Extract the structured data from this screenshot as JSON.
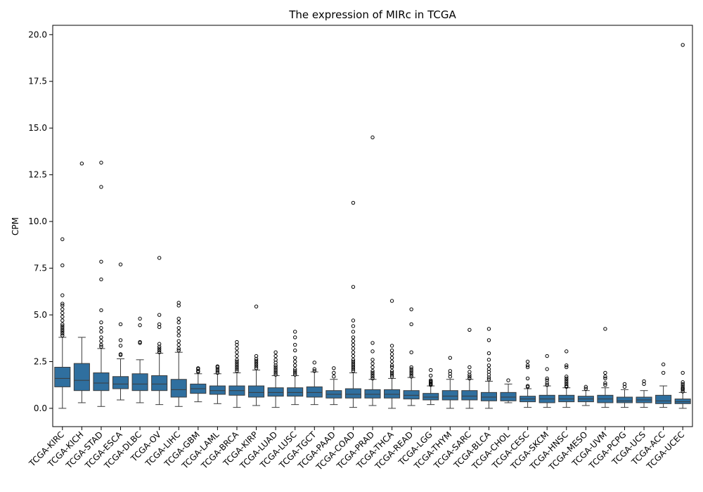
{
  "chart_data": {
    "type": "box",
    "title": "The expression of MIRc in TCGA",
    "xlabel": "",
    "ylabel": "CPM",
    "ylim": [
      -0.98,
      20.5
    ],
    "yticks": [
      0.0,
      2.5,
      5.0,
      7.5,
      10.0,
      12.5,
      15.0,
      17.5,
      20.0
    ],
    "ytick_labels": [
      "0.0",
      "2.5",
      "5.0",
      "7.5",
      "10.0",
      "12.5",
      "15.0",
      "17.5",
      "20.0"
    ],
    "grid": false,
    "legend": "none",
    "box_color": "#2f6f9f",
    "categories": [
      "TCGA-KIRC",
      "TCGA-KICH",
      "TCGA-STAD",
      "TCGA-ESCA",
      "TCGA-DLBC",
      "TCGA-OV",
      "TCGA-LIHC",
      "TCGA-GBM",
      "TCGA-LAML",
      "TCGA-BRCA",
      "TCGA-KIRP",
      "TCGA-LUAD",
      "TCGA-LUSC",
      "TCGA-TGCT",
      "TCGA-PAAD",
      "TCGA-COAD",
      "TCGA-PRAD",
      "TCGA-THCA",
      "TCGA-READ",
      "TCGA-LGG",
      "TCGA-THYM",
      "TCGA-SARC",
      "TCGA-BLCA",
      "TCGA-CHOL",
      "TCGA-CESC",
      "TCGA-SKCM",
      "TCGA-HNSC",
      "TCGA-MESO",
      "TCGA-UVM",
      "TCGA-PCPG",
      "TCGA-UCS",
      "TCGA-ACC",
      "TCGA-UCEC"
    ],
    "boxes": [
      {
        "whislo": 0.0,
        "q1": 1.15,
        "med": 1.6,
        "q3": 2.2,
        "whishi": 3.8,
        "fliers": [
          3.9,
          4.0,
          4.1,
          4.2,
          4.3,
          4.4,
          4.5,
          4.7,
          4.9,
          5.1,
          5.3,
          5.5,
          5.6,
          6.05,
          7.65,
          9.05
        ]
      },
      {
        "whislo": 0.3,
        "q1": 0.95,
        "med": 1.5,
        "q3": 2.4,
        "whishi": 3.8,
        "fliers": [
          13.1
        ]
      },
      {
        "whislo": 0.1,
        "q1": 0.95,
        "med": 1.35,
        "q3": 1.9,
        "whishi": 3.2,
        "fliers": [
          3.3,
          3.4,
          3.6,
          3.8,
          4.1,
          4.3,
          4.6,
          5.25,
          6.9,
          7.85,
          11.85,
          13.15
        ]
      },
      {
        "whislo": 0.45,
        "q1": 1.05,
        "med": 1.3,
        "q3": 1.7,
        "whishi": 2.65,
        "fliers": [
          2.85,
          2.9,
          3.35,
          3.65,
          4.5,
          7.7
        ]
      },
      {
        "whislo": 0.3,
        "q1": 0.95,
        "med": 1.3,
        "q3": 1.85,
        "whishi": 2.6,
        "fliers": [
          3.5,
          3.55,
          4.45,
          4.8
        ]
      },
      {
        "whislo": 0.2,
        "q1": 0.95,
        "med": 1.3,
        "q3": 1.75,
        "whishi": 2.95,
        "fliers": [
          3.0,
          3.1,
          3.2,
          3.3,
          3.45,
          4.35,
          4.5,
          5.0,
          8.05
        ]
      },
      {
        "whislo": 0.1,
        "q1": 0.6,
        "med": 1.0,
        "q3": 1.55,
        "whishi": 3.0,
        "fliers": [
          3.1,
          3.2,
          3.4,
          3.6,
          3.9,
          4.1,
          4.3,
          4.6,
          4.8,
          5.5,
          5.65
        ]
      },
      {
        "whislo": 0.35,
        "q1": 0.8,
        "med": 1.05,
        "q3": 1.3,
        "whishi": 1.85,
        "fliers": [
          1.95,
          2.0,
          2.1,
          2.15
        ]
      },
      {
        "whislo": 0.25,
        "q1": 0.75,
        "med": 0.95,
        "q3": 1.2,
        "whishi": 1.85,
        "fliers": [
          1.9,
          2.0,
          2.1,
          2.2,
          2.25
        ]
      },
      {
        "whislo": 0.05,
        "q1": 0.7,
        "med": 0.95,
        "q3": 1.2,
        "whishi": 1.9,
        "fliers": [
          2.0,
          2.1,
          2.2,
          2.3,
          2.4,
          2.5,
          2.6,
          2.8,
          3.0,
          3.2,
          3.4,
          3.55
        ]
      },
      {
        "whislo": 0.15,
        "q1": 0.6,
        "med": 0.85,
        "q3": 1.2,
        "whishi": 2.05,
        "fliers": [
          2.15,
          2.25,
          2.35,
          2.45,
          2.55,
          2.65,
          2.8,
          5.45
        ]
      },
      {
        "whislo": 0.05,
        "q1": 0.65,
        "med": 0.85,
        "q3": 1.1,
        "whishi": 1.75,
        "fliers": [
          1.8,
          1.9,
          2.0,
          2.1,
          2.2,
          2.3,
          2.45,
          2.6,
          2.8,
          3.0
        ]
      },
      {
        "whislo": 0.2,
        "q1": 0.65,
        "med": 0.85,
        "q3": 1.1,
        "whishi": 1.75,
        "fliers": [
          1.8,
          1.9,
          2.0,
          2.1,
          2.3,
          2.5,
          2.7,
          3.1,
          3.4,
          3.8,
          4.1
        ]
      },
      {
        "whislo": 0.2,
        "q1": 0.6,
        "med": 0.85,
        "q3": 1.15,
        "whishi": 1.95,
        "fliers": [
          2.0,
          2.1,
          2.45
        ]
      },
      {
        "whislo": 0.2,
        "q1": 0.55,
        "med": 0.75,
        "q3": 0.95,
        "whishi": 1.55,
        "fliers": [
          1.7,
          1.9,
          2.15
        ]
      },
      {
        "whislo": 0.05,
        "q1": 0.55,
        "med": 0.75,
        "q3": 1.05,
        "whishi": 1.9,
        "fliers": [
          2.0,
          2.1,
          2.2,
          2.3,
          2.4,
          2.5,
          2.6,
          2.8,
          3.0,
          3.2,
          3.4,
          3.6,
          3.8,
          4.1,
          4.4,
          4.7,
          6.5,
          11.0
        ]
      },
      {
        "whislo": 0.15,
        "q1": 0.55,
        "med": 0.75,
        "q3": 1.0,
        "whishi": 1.55,
        "fliers": [
          1.6,
          1.7,
          1.8,
          1.9,
          2.0,
          2.2,
          2.4,
          2.6,
          3.05,
          3.5,
          14.5
        ]
      },
      {
        "whislo": 0.0,
        "q1": 0.55,
        "med": 0.75,
        "q3": 1.0,
        "whishi": 1.6,
        "fliers": [
          1.7,
          1.8,
          1.9,
          2.0,
          2.2,
          2.3,
          2.5,
          2.7,
          2.9,
          3.1,
          3.35,
          5.75
        ]
      },
      {
        "whislo": 0.15,
        "q1": 0.5,
        "med": 0.7,
        "q3": 0.95,
        "whishi": 1.65,
        "fliers": [
          1.7,
          1.8,
          1.9,
          2.0,
          2.1,
          2.2,
          3.0,
          4.5,
          5.3
        ]
      },
      {
        "whislo": 0.2,
        "q1": 0.45,
        "med": 0.6,
        "q3": 0.8,
        "whishi": 1.2,
        "fliers": [
          1.25,
          1.3,
          1.35,
          1.4,
          1.45,
          1.5,
          1.75,
          2.05
        ]
      },
      {
        "whislo": 0.0,
        "q1": 0.45,
        "med": 0.65,
        "q3": 0.95,
        "whishi": 1.55,
        "fliers": [
          1.7,
          1.85,
          2.0,
          2.7
        ]
      },
      {
        "whislo": 0.0,
        "q1": 0.45,
        "med": 0.65,
        "q3": 0.95,
        "whishi": 1.55,
        "fliers": [
          1.6,
          1.7,
          1.8,
          1.95,
          2.2,
          4.2
        ]
      },
      {
        "whislo": 0.0,
        "q1": 0.4,
        "med": 0.6,
        "q3": 0.85,
        "whishi": 1.45,
        "fliers": [
          1.55,
          1.65,
          1.8,
          1.95,
          2.1,
          2.3,
          2.6,
          2.95,
          3.65,
          4.25
        ]
      },
      {
        "whislo": 0.3,
        "q1": 0.4,
        "med": 0.6,
        "q3": 0.85,
        "whishi": 1.3,
        "fliers": [
          1.5
        ]
      },
      {
        "whislo": 0.05,
        "q1": 0.35,
        "med": 0.5,
        "q3": 0.65,
        "whishi": 1.05,
        "fliers": [
          1.15,
          1.2,
          1.6,
          2.2,
          2.3,
          2.5
        ]
      },
      {
        "whislo": 0.05,
        "q1": 0.3,
        "med": 0.5,
        "q3": 0.7,
        "whishi": 1.2,
        "fliers": [
          1.25,
          1.35,
          1.5,
          1.6,
          2.1,
          2.8
        ]
      },
      {
        "whislo": 0.05,
        "q1": 0.35,
        "med": 0.5,
        "q3": 0.7,
        "whishi": 1.1,
        "fliers": [
          1.15,
          1.2,
          1.3,
          1.4,
          1.5,
          1.6,
          1.7,
          2.2,
          2.3,
          3.05
        ]
      },
      {
        "whislo": 0.15,
        "q1": 0.35,
        "med": 0.5,
        "q3": 0.65,
        "whishi": 0.95,
        "fliers": [
          1.05,
          1.15
        ]
      },
      {
        "whislo": 0.05,
        "q1": 0.3,
        "med": 0.5,
        "q3": 0.7,
        "whishi": 1.1,
        "fliers": [
          1.25,
          1.35,
          1.6,
          1.7,
          1.9,
          4.25
        ]
      },
      {
        "whislo": 0.05,
        "q1": 0.3,
        "med": 0.4,
        "q3": 0.6,
        "whishi": 1.0,
        "fliers": [
          1.15,
          1.3
        ]
      },
      {
        "whislo": 0.05,
        "q1": 0.3,
        "med": 0.45,
        "q3": 0.6,
        "whishi": 0.95,
        "fliers": [
          1.3,
          1.45
        ]
      },
      {
        "whislo": 0.05,
        "q1": 0.25,
        "med": 0.4,
        "q3": 0.7,
        "whishi": 1.2,
        "fliers": [
          1.9,
          2.35
        ]
      },
      {
        "whislo": 0.0,
        "q1": 0.25,
        "med": 0.35,
        "q3": 0.5,
        "whishi": 0.85,
        "fliers": [
          0.9,
          1.0,
          1.05,
          1.1,
          1.2,
          1.3,
          1.4,
          1.9,
          19.45
        ]
      }
    ]
  }
}
